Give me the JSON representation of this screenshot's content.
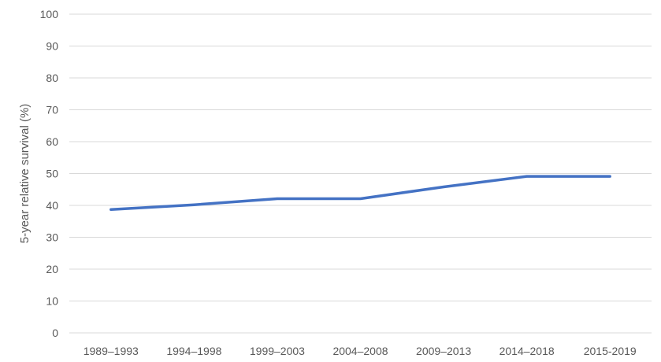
{
  "chart_data": {
    "type": "line",
    "title": "",
    "xlabel": "",
    "ylabel": "5-year relative survival (%)",
    "categories": [
      "1989–1993",
      "1994–1998",
      "1999–2003",
      "2004–2008",
      "2009–2013",
      "2014–2018",
      "2015-2019"
    ],
    "series": [
      {
        "values": [
          38.7,
          40.2,
          42.1,
          42.1,
          45.8,
          49.1,
          49.1
        ],
        "color": "#4472C4"
      }
    ],
    "ylim": [
      0,
      100
    ],
    "yticks": [
      "0",
      "10",
      "20",
      "30",
      "40",
      "50",
      "60",
      "70",
      "80",
      "90",
      "100"
    ],
    "grid": true,
    "legend": "none"
  }
}
